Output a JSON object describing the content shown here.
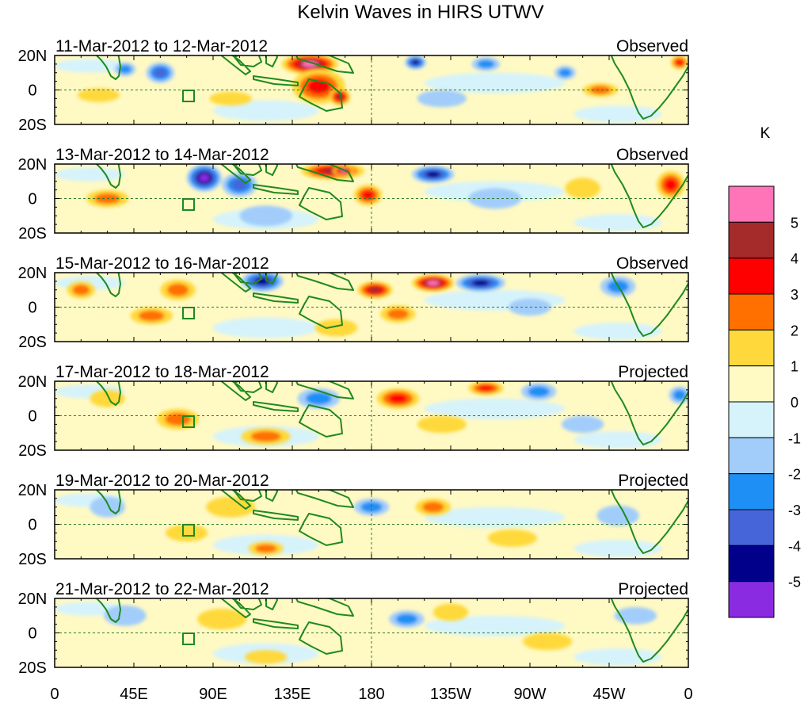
{
  "chart_data": {
    "type": "heatmap",
    "title": "Kelvin Waves in HIRS UTWV",
    "colorbar": {
      "unit": "K",
      "tick_labels": [
        "5",
        "4",
        "3",
        "2",
        "1",
        "0",
        "-1",
        "-2",
        "-3",
        "-4",
        "-5"
      ],
      "colors_top_to_bottom": [
        "#ff73b9",
        "#a52a2a",
        "#ff0000",
        "#ff7000",
        "#ffd93b",
        "#fff9c4",
        "#d6f3fb",
        "#a2cdfb",
        "#1e8ff4",
        "#4565d8",
        "#00008b",
        "#8a2be2"
      ]
    },
    "lat_tick_labels": [
      "20N",
      "0",
      "20S"
    ],
    "lon_tick_labels": [
      "0",
      "45E",
      "90E",
      "135E",
      "180",
      "135W",
      "90W",
      "45W",
      "0"
    ],
    "lon_range": [
      0,
      360
    ],
    "lat_range": [
      -20,
      20
    ],
    "panels": [
      {
        "date_range": "11-Mar-2012 to 12-Mar-2012",
        "status": "Observed",
        "anomalies": [
          {
            "lon": 145,
            "lat": 15,
            "rx": 16,
            "ry": 6,
            "value": 5
          },
          {
            "lon": 150,
            "lat": 2,
            "rx": 15,
            "ry": 10,
            "value": 3
          },
          {
            "lon": 162,
            "lat": -4,
            "rx": 6,
            "ry": 5,
            "value": 4
          },
          {
            "lon": 60,
            "lat": 10,
            "rx": 8,
            "ry": 6,
            "value": -3
          },
          {
            "lon": 40,
            "lat": 12,
            "rx": 6,
            "ry": 4,
            "value": -2
          },
          {
            "lon": 205,
            "lat": 16,
            "rx": 6,
            "ry": 4,
            "value": -4
          },
          {
            "lon": 245,
            "lat": 15,
            "rx": 8,
            "ry": 4,
            "value": -2
          },
          {
            "lon": 290,
            "lat": 10,
            "rx": 6,
            "ry": 4,
            "value": -2
          },
          {
            "lon": 310,
            "lat": 0,
            "rx": 10,
            "ry": 4,
            "value": 2
          },
          {
            "lon": 355,
            "lat": 16,
            "rx": 5,
            "ry": 4,
            "value": 3
          },
          {
            "lon": 25,
            "lat": -3,
            "rx": 12,
            "ry": 4,
            "value": 1
          },
          {
            "lon": 100,
            "lat": -5,
            "rx": 12,
            "ry": 4,
            "value": 1
          },
          {
            "lon": 220,
            "lat": -5,
            "rx": 14,
            "ry": 5,
            "value": -1
          }
        ]
      },
      {
        "date_range": "13-Mar-2012 to 14-Mar-2012",
        "status": "Observed",
        "anomalies": [
          {
            "lon": 85,
            "lat": 12,
            "rx": 10,
            "ry": 8,
            "value": -5
          },
          {
            "lon": 105,
            "lat": 8,
            "rx": 10,
            "ry": 7,
            "value": -3
          },
          {
            "lon": 158,
            "lat": 16,
            "rx": 18,
            "ry": 5,
            "value": 4
          },
          {
            "lon": 164,
            "lat": 16,
            "rx": 6,
            "ry": 3,
            "value": 5
          },
          {
            "lon": 178,
            "lat": 2,
            "rx": 8,
            "ry": 6,
            "value": 3
          },
          {
            "lon": 215,
            "lat": 14,
            "rx": 12,
            "ry": 5,
            "value": -4
          },
          {
            "lon": 30,
            "lat": 0,
            "rx": 12,
            "ry": 5,
            "value": 2
          },
          {
            "lon": 350,
            "lat": 8,
            "rx": 8,
            "ry": 8,
            "value": 3
          },
          {
            "lon": 250,
            "lat": 0,
            "rx": 15,
            "ry": 6,
            "value": -1
          },
          {
            "lon": 300,
            "lat": 6,
            "rx": 10,
            "ry": 6,
            "value": 1
          },
          {
            "lon": 120,
            "lat": -10,
            "rx": 15,
            "ry": 6,
            "value": -1
          }
        ]
      },
      {
        "date_range": "15-Mar-2012 to 16-Mar-2012",
        "status": "Observed",
        "anomalies": [
          {
            "lon": 118,
            "lat": 15,
            "rx": 12,
            "ry": 6,
            "value": -4
          },
          {
            "lon": 182,
            "lat": 10,
            "rx": 10,
            "ry": 5,
            "value": 4
          },
          {
            "lon": 215,
            "lat": 14,
            "rx": 12,
            "ry": 5,
            "value": 5
          },
          {
            "lon": 242,
            "lat": 14,
            "rx": 14,
            "ry": 5,
            "value": -4
          },
          {
            "lon": 70,
            "lat": 10,
            "rx": 10,
            "ry": 6,
            "value": 2
          },
          {
            "lon": 55,
            "lat": -5,
            "rx": 12,
            "ry": 5,
            "value": 2
          },
          {
            "lon": 195,
            "lat": -4,
            "rx": 10,
            "ry": 5,
            "value": 2
          },
          {
            "lon": 320,
            "lat": 12,
            "rx": 10,
            "ry": 6,
            "value": -2
          },
          {
            "lon": 15,
            "lat": 10,
            "rx": 8,
            "ry": 5,
            "value": 2
          },
          {
            "lon": 270,
            "lat": 0,
            "rx": 12,
            "ry": 5,
            "value": -1
          },
          {
            "lon": 160,
            "lat": -12,
            "rx": 12,
            "ry": 5,
            "value": 1
          }
        ]
      },
      {
        "date_range": "17-Mar-2012 to 18-Mar-2012",
        "status": "Projected",
        "anomalies": [
          {
            "lon": 195,
            "lat": 10,
            "rx": 12,
            "ry": 6,
            "value": 3
          },
          {
            "lon": 245,
            "lat": 16,
            "rx": 10,
            "ry": 4,
            "value": 3
          },
          {
            "lon": 120,
            "lat": -12,
            "rx": 14,
            "ry": 5,
            "value": 2
          },
          {
            "lon": 70,
            "lat": -2,
            "rx": 12,
            "ry": 6,
            "value": 2
          },
          {
            "lon": 150,
            "lat": 10,
            "rx": 12,
            "ry": 6,
            "value": -2
          },
          {
            "lon": 275,
            "lat": 14,
            "rx": 10,
            "ry": 5,
            "value": -2
          },
          {
            "lon": 355,
            "lat": 12,
            "rx": 6,
            "ry": 5,
            "value": -2
          },
          {
            "lon": 30,
            "lat": 10,
            "rx": 10,
            "ry": 5,
            "value": 1
          },
          {
            "lon": 220,
            "lat": -5,
            "rx": 14,
            "ry": 5,
            "value": 1
          },
          {
            "lon": 300,
            "lat": -5,
            "rx": 12,
            "ry": 5,
            "value": -1
          }
        ]
      },
      {
        "date_range": "19-Mar-2012 to 20-Mar-2012",
        "status": "Projected",
        "anomalies": [
          {
            "lon": 215,
            "lat": 10,
            "rx": 10,
            "ry": 5,
            "value": 2
          },
          {
            "lon": 180,
            "lat": 10,
            "rx": 10,
            "ry": 5,
            "value": -2
          },
          {
            "lon": 120,
            "lat": -14,
            "rx": 10,
            "ry": 4,
            "value": 2
          },
          {
            "lon": 100,
            "lat": 10,
            "rx": 14,
            "ry": 6,
            "value": 1
          },
          {
            "lon": 75,
            "lat": -5,
            "rx": 12,
            "ry": 5,
            "value": 1
          },
          {
            "lon": 260,
            "lat": -8,
            "rx": 14,
            "ry": 5,
            "value": 1
          },
          {
            "lon": 30,
            "lat": 10,
            "rx": 10,
            "ry": 6,
            "value": -1
          },
          {
            "lon": 320,
            "lat": 5,
            "rx": 12,
            "ry": 6,
            "value": -1
          }
        ]
      },
      {
        "date_range": "21-Mar-2012 to 22-Mar-2012",
        "status": "Projected",
        "anomalies": [
          {
            "lon": 225,
            "lat": 12,
            "rx": 10,
            "ry": 5,
            "value": 1
          },
          {
            "lon": 200,
            "lat": 8,
            "rx": 10,
            "ry": 5,
            "value": -2
          },
          {
            "lon": 120,
            "lat": -14,
            "rx": 12,
            "ry": 4,
            "value": 1
          },
          {
            "lon": 95,
            "lat": 8,
            "rx": 14,
            "ry": 6,
            "value": 1
          },
          {
            "lon": 40,
            "lat": 10,
            "rx": 12,
            "ry": 6,
            "value": -1
          },
          {
            "lon": 280,
            "lat": -5,
            "rx": 14,
            "ry": 5,
            "value": 1
          },
          {
            "lon": 330,
            "lat": 10,
            "rx": 12,
            "ry": 5,
            "value": -1
          }
        ]
      }
    ]
  }
}
